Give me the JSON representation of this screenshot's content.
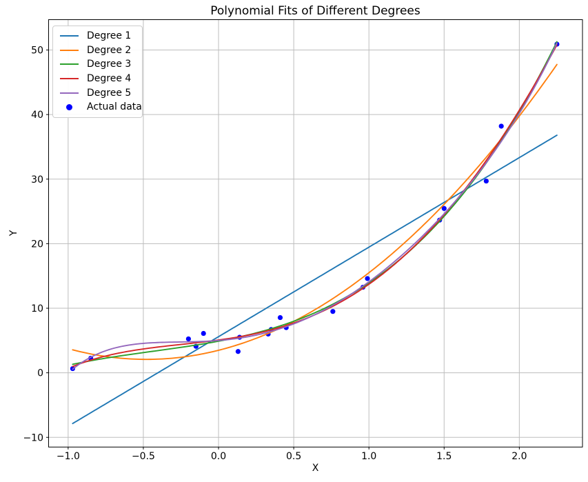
{
  "chart_data": {
    "type": "scatter",
    "title": "Polynomial Fits of Different Degrees",
    "xlabel": "X",
    "ylabel": "Y",
    "xlim": [
      -1.13,
      2.42
    ],
    "ylim": [
      -11.5,
      54.7
    ],
    "xtick_values": [
      -1.0,
      -0.5,
      0.0,
      0.5,
      1.0,
      1.5,
      2.0
    ],
    "xtick_labels": [
      "−1.0",
      "−0.5",
      "0.0",
      "0.5",
      "1.0",
      "1.5",
      "2.0"
    ],
    "ytick_values": [
      -10,
      0,
      10,
      20,
      30,
      40,
      50
    ],
    "ytick_labels": [
      "−10",
      "0",
      "10",
      "20",
      "30",
      "40",
      "50"
    ],
    "grid": true,
    "grid_color": "#bdbdbd",
    "spine_color": "#000000",
    "legend_position": "upper left",
    "series": [
      {
        "name": "Degree 1",
        "degree": 1,
        "color": "#1f77b4"
      },
      {
        "name": "Degree 2",
        "degree": 2,
        "color": "#ff7f0e"
      },
      {
        "name": "Degree 3",
        "degree": 3,
        "color": "#2ca02c"
      },
      {
        "name": "Degree 4",
        "degree": 4,
        "color": "#d62728"
      },
      {
        "name": "Degree 5",
        "degree": 5,
        "color": "#9467bd"
      }
    ],
    "scatter": {
      "name": "Actual data",
      "color": "#0000ff",
      "points": [
        [
          -0.97,
          0.65
        ],
        [
          -0.85,
          2.25
        ],
        [
          -0.2,
          5.25
        ],
        [
          -0.15,
          4.1
        ],
        [
          -0.1,
          6.1
        ],
        [
          0.13,
          3.3
        ],
        [
          0.14,
          5.5
        ],
        [
          0.33,
          6.0
        ],
        [
          0.35,
          6.7
        ],
        [
          0.41,
          8.55
        ],
        [
          0.45,
          7.0
        ],
        [
          0.76,
          9.5
        ],
        [
          0.96,
          13.25
        ],
        [
          0.99,
          14.6
        ],
        [
          1.47,
          23.65
        ],
        [
          1.5,
          25.45
        ],
        [
          1.78,
          29.7
        ],
        [
          1.88,
          38.2
        ],
        [
          2.25,
          50.9
        ]
      ]
    },
    "fit_x_range": [
      -0.97,
      2.25
    ]
  }
}
